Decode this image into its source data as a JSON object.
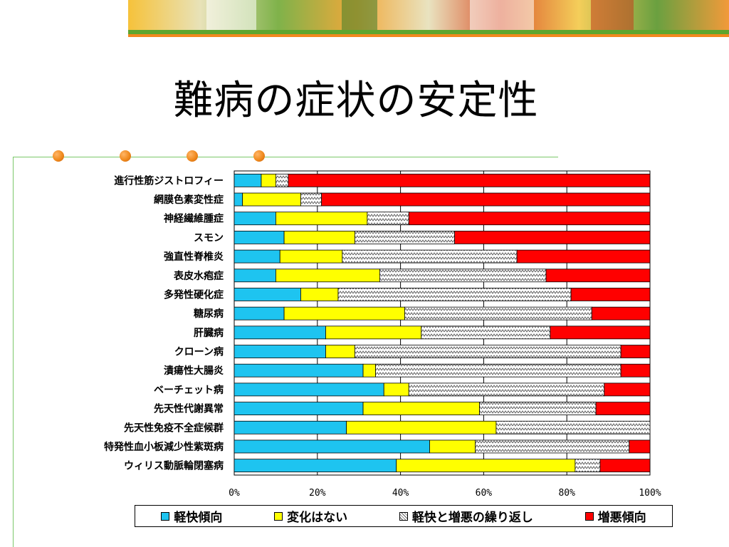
{
  "slide": {
    "title": "難病の症状の安定性"
  },
  "colors": {
    "improving": "#1ec4f0",
    "unchanged": "#ffff00",
    "fluctuating": "#ffffff",
    "worsening": "#ff0000",
    "hatch": "#606060",
    "banner_green": "#5fa52e",
    "banner_orange": "#f3881e",
    "rule_green": "#7bc86a",
    "dot_orange": "#f08a1e"
  },
  "chart_data": {
    "type": "bar",
    "orientation": "horizontal",
    "stacked": "percent",
    "categories": [
      "進行性筋ジストロフィー",
      "網膜色素変性症",
      "神経繊維腫症",
      "スモン",
      "強直性脊椎炎",
      "表皮水疱症",
      "多発性硬化症",
      "糖尿病",
      "肝臓病",
      "クローン病",
      "潰瘍性大腸炎",
      "ベーチェット病",
      "先天性代謝異常",
      "先天性免疫不全症候群",
      "特発性血小板減少性紫斑病",
      "ウィリス動脈輪閉塞病"
    ],
    "series": [
      {
        "name": "軽快傾向",
        "values": [
          6.5,
          2,
          10,
          12,
          11,
          10,
          16,
          12,
          22,
          22,
          31,
          36,
          31,
          27,
          47,
          39
        ]
      },
      {
        "name": "変化はない",
        "values": [
          3.5,
          14,
          22,
          17,
          15,
          25,
          9,
          29,
          23,
          7,
          3,
          6,
          28,
          36,
          11,
          43
        ]
      },
      {
        "name": "軽快と増悪の繰り返し",
        "values": [
          3,
          5,
          10,
          24,
          42,
          40,
          56,
          45,
          31,
          64,
          59,
          47,
          28,
          37,
          37,
          6
        ]
      },
      {
        "name": "増悪傾向",
        "values": [
          87,
          79,
          58,
          47,
          32,
          25,
          19,
          14,
          24,
          7,
          7,
          11,
          13,
          0,
          5,
          12
        ]
      }
    ],
    "x_ticks": [
      "0%",
      "20%",
      "40%",
      "60%",
      "80%",
      "100%"
    ],
    "xlim": [
      0,
      100
    ],
    "grid": "vertical",
    "legend_position": "bottom"
  }
}
